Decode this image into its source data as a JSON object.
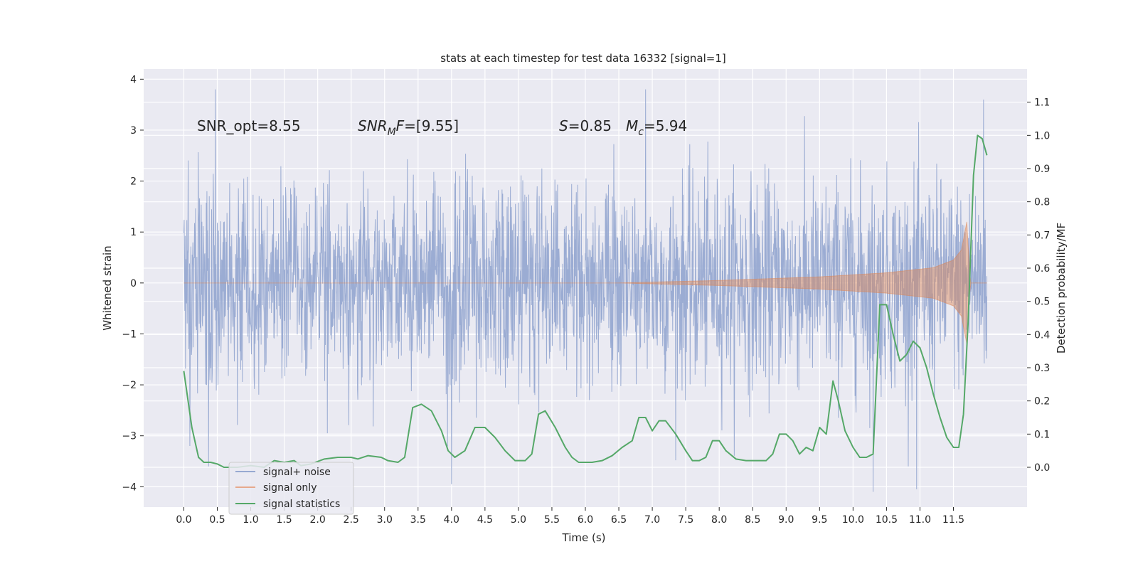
{
  "chart_data": {
    "type": "line",
    "title": "stats at each timestep for test data 16332 [signal=1]",
    "xlabel": "Time (s)",
    "ylabel": "Whitened strain",
    "y2label": "Detection probability/MF",
    "xlim": [
      -0.6,
      12.6
    ],
    "ylim": [
      -4.4,
      4.2
    ],
    "y2lim": [
      -0.12,
      1.2
    ],
    "xticks": [
      0.0,
      0.5,
      1.0,
      1.5,
      2.0,
      2.5,
      3.0,
      3.5,
      4.0,
      4.5,
      5.0,
      5.5,
      6.0,
      6.5,
      7.0,
      7.5,
      8.0,
      8.5,
      9.0,
      9.5,
      10.0,
      10.5,
      11.0,
      11.5
    ],
    "xtick_labels": [
      "0.0",
      "0.5",
      "1.0",
      "1.5",
      "2.0",
      "2.5",
      "3.0",
      "3.5",
      "4.0",
      "4.5",
      "5.0",
      "5.5",
      "6.0",
      "6.5",
      "7.0",
      "7.5",
      "8.0",
      "8.5",
      "9.0",
      "9.5",
      "10.0",
      "10.5",
      "11.0",
      "11.5"
    ],
    "yticks": [
      -4,
      -3,
      -2,
      -1,
      0,
      1,
      2,
      3,
      4
    ],
    "ytick_labels": [
      "−4",
      "−3",
      "−2",
      "−1",
      "0",
      "1",
      "2",
      "3",
      "4"
    ],
    "y2ticks": [
      0.0,
      0.1,
      0.2,
      0.3,
      0.4,
      0.5,
      0.6,
      0.7,
      0.8,
      0.9,
      1.0,
      1.1
    ],
    "y2tick_labels": [
      "0.0",
      "0.1",
      "0.2",
      "0.3",
      "0.4",
      "0.5",
      "0.6",
      "0.7",
      "0.8",
      "0.9",
      "1.0",
      "1.1"
    ],
    "grid": true,
    "legend": "lower-left",
    "colors": {
      "background": "#eaeaf2",
      "grid": "#ffffff",
      "signal_noise": "#97a9d1",
      "signal_only": "#dd8452",
      "signal_stats": "#55a868"
    },
    "annotations": [
      {
        "text": "SNR_opt=8.55",
        "x": 0.2,
        "y": 3.0
      },
      {
        "text": "SNR",
        "sub": "M",
        "suffix": "F=[9.55]",
        "x": 2.6,
        "y": 3.0
      },
      {
        "text": "S",
        "suffix": "=0.85",
        "x": 5.6,
        "y": 3.0
      },
      {
        "text": "M",
        "sub": "c",
        "suffix": "=5.94",
        "x": 6.6,
        "y": 3.0
      }
    ],
    "series": [
      {
        "name": "signal+ noise",
        "duration": 12.0,
        "approx_std": 1.0,
        "notable_peaks": [
          [
            0.47,
            3.8
          ],
          [
            6.9,
            3.8
          ],
          [
            11.95,
            3.6
          ],
          [
            4.0,
            -3.95
          ],
          [
            10.3,
            -4.1
          ],
          [
            10.95,
            -4.05
          ]
        ]
      },
      {
        "name": "signal only",
        "envelope": [
          [
            0.0,
            0.0
          ],
          [
            6.5,
            0.0
          ],
          [
            8.0,
            0.05
          ],
          [
            9.5,
            0.12
          ],
          [
            10.5,
            0.2
          ],
          [
            11.2,
            0.3
          ],
          [
            11.5,
            0.45
          ],
          [
            11.62,
            0.65
          ],
          [
            11.7,
            1.2
          ],
          [
            11.75,
            0.0
          ],
          [
            12.0,
            0.0
          ]
        ]
      },
      {
        "name": "signal statistics",
        "points": [
          [
            0.0,
            0.29
          ],
          [
            0.12,
            0.12
          ],
          [
            0.22,
            0.03
          ],
          [
            0.3,
            0.015
          ],
          [
            0.4,
            0.015
          ],
          [
            0.5,
            0.01
          ],
          [
            0.6,
            0.0
          ],
          [
            0.8,
            0.0
          ],
          [
            1.0,
            0.005
          ],
          [
            1.2,
            0.0
          ],
          [
            1.35,
            0.02
          ],
          [
            1.5,
            0.015
          ],
          [
            1.65,
            0.02
          ],
          [
            1.75,
            0.005
          ],
          [
            1.9,
            0.01
          ],
          [
            2.1,
            0.025
          ],
          [
            2.3,
            0.03
          ],
          [
            2.5,
            0.03
          ],
          [
            2.6,
            0.025
          ],
          [
            2.75,
            0.035
          ],
          [
            2.95,
            0.03
          ],
          [
            3.05,
            0.02
          ],
          [
            3.2,
            0.015
          ],
          [
            3.3,
            0.03
          ],
          [
            3.42,
            0.18
          ],
          [
            3.55,
            0.19
          ],
          [
            3.7,
            0.17
          ],
          [
            3.85,
            0.11
          ],
          [
            3.95,
            0.05
          ],
          [
            4.05,
            0.03
          ],
          [
            4.2,
            0.05
          ],
          [
            4.35,
            0.12
          ],
          [
            4.5,
            0.12
          ],
          [
            4.65,
            0.09
          ],
          [
            4.8,
            0.05
          ],
          [
            4.95,
            0.02
          ],
          [
            5.1,
            0.02
          ],
          [
            5.2,
            0.04
          ],
          [
            5.3,
            0.16
          ],
          [
            5.4,
            0.17
          ],
          [
            5.55,
            0.12
          ],
          [
            5.7,
            0.06
          ],
          [
            5.8,
            0.03
          ],
          [
            5.9,
            0.015
          ],
          [
            6.1,
            0.015
          ],
          [
            6.25,
            0.02
          ],
          [
            6.4,
            0.035
          ],
          [
            6.55,
            0.06
          ],
          [
            6.7,
            0.08
          ],
          [
            6.8,
            0.15
          ],
          [
            6.9,
            0.15
          ],
          [
            7.0,
            0.11
          ],
          [
            7.1,
            0.14
          ],
          [
            7.2,
            0.14
          ],
          [
            7.35,
            0.1
          ],
          [
            7.5,
            0.05
          ],
          [
            7.6,
            0.02
          ],
          [
            7.7,
            0.02
          ],
          [
            7.8,
            0.03
          ],
          [
            7.9,
            0.08
          ],
          [
            8.0,
            0.08
          ],
          [
            8.1,
            0.05
          ],
          [
            8.25,
            0.025
          ],
          [
            8.4,
            0.02
          ],
          [
            8.55,
            0.02
          ],
          [
            8.7,
            0.02
          ],
          [
            8.8,
            0.04
          ],
          [
            8.9,
            0.1
          ],
          [
            9.0,
            0.1
          ],
          [
            9.1,
            0.08
          ],
          [
            9.2,
            0.04
          ],
          [
            9.3,
            0.06
          ],
          [
            9.4,
            0.05
          ],
          [
            9.5,
            0.12
          ],
          [
            9.6,
            0.1
          ],
          [
            9.7,
            0.26
          ],
          [
            9.78,
            0.2
          ],
          [
            9.88,
            0.11
          ],
          [
            10.0,
            0.06
          ],
          [
            10.1,
            0.03
          ],
          [
            10.2,
            0.03
          ],
          [
            10.3,
            0.04
          ],
          [
            10.4,
            0.49
          ],
          [
            10.5,
            0.49
          ],
          [
            10.6,
            0.4
          ],
          [
            10.7,
            0.32
          ],
          [
            10.8,
            0.34
          ],
          [
            10.9,
            0.38
          ],
          [
            11.0,
            0.36
          ],
          [
            11.1,
            0.3
          ],
          [
            11.2,
            0.22
          ],
          [
            11.3,
            0.15
          ],
          [
            11.4,
            0.09
          ],
          [
            11.5,
            0.06
          ],
          [
            11.58,
            0.06
          ],
          [
            11.65,
            0.16
          ],
          [
            11.72,
            0.44
          ],
          [
            11.8,
            0.88
          ],
          [
            11.86,
            1.0
          ],
          [
            11.93,
            0.99
          ],
          [
            12.0,
            0.94
          ]
        ]
      }
    ]
  }
}
